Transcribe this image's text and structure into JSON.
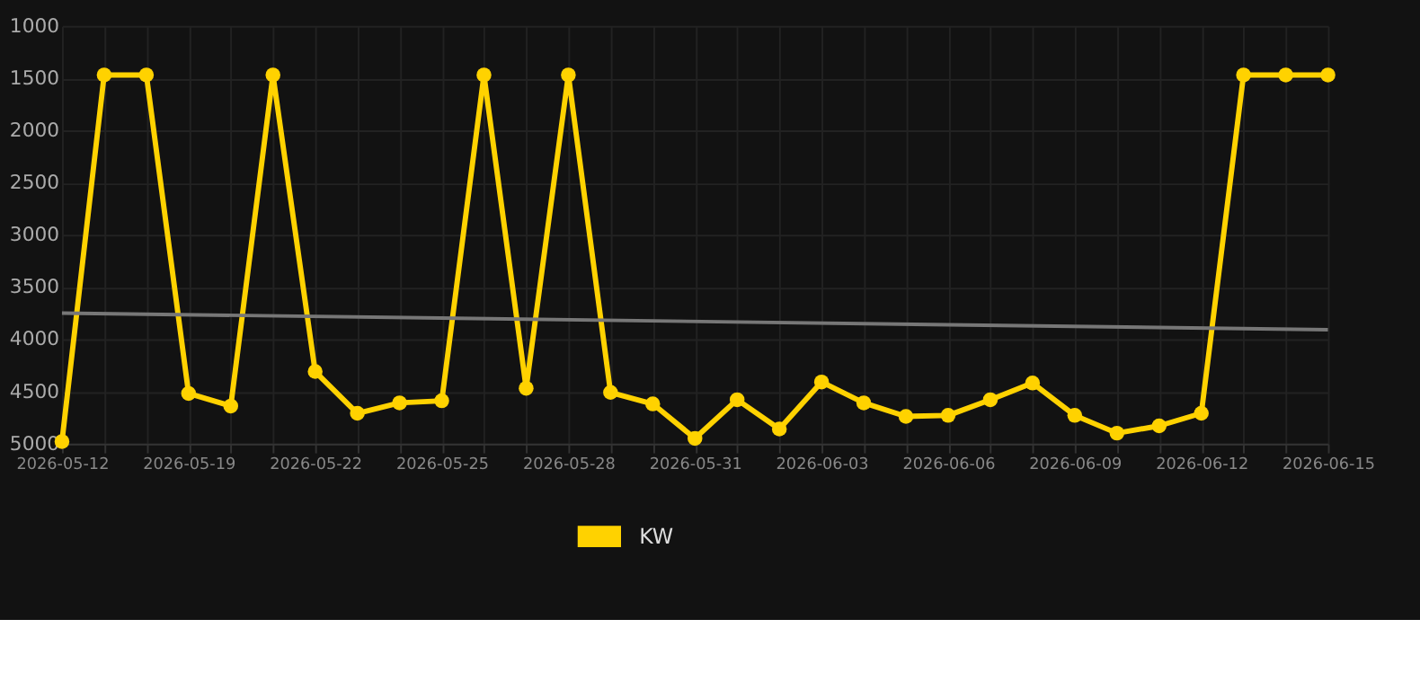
{
  "chart_data": {
    "type": "line",
    "categories": [
      "2026-05-12",
      null,
      null,
      "2026-05-19",
      null,
      null,
      "2026-05-22",
      null,
      null,
      "2026-05-25",
      null,
      null,
      "2026-05-28",
      null,
      null,
      "2026-05-31",
      null,
      null,
      "2026-06-03",
      null,
      null,
      "2026-06-06",
      null,
      null,
      "2026-06-09",
      null,
      null,
      "2026-06-12",
      null,
      null,
      "2026-06-15"
    ],
    "series": [
      {
        "name": "KW",
        "color": "#ffd200",
        "values": [
          4980,
          1470,
          1470,
          4520,
          4640,
          1470,
          4310,
          4710,
          4610,
          4590,
          1470,
          4470,
          1470,
          4510,
          4620,
          4950,
          4580,
          4860,
          4410,
          4610,
          4740,
          4730,
          4580,
          4420,
          4730,
          4900,
          4830,
          4710,
          1470,
          1470,
          1470
        ]
      },
      {
        "type": "line",
        "color": "#777777",
        "marker": "none",
        "values": [
          3750,
          null,
          null,
          null,
          null,
          null,
          null,
          null,
          null,
          null,
          null,
          null,
          null,
          null,
          null,
          null,
          null,
          null,
          null,
          null,
          null,
          null,
          null,
          null,
          null,
          null,
          null,
          null,
          null,
          null,
          3910
        ]
      }
    ],
    "ylim": [
      5000,
      1000
    ],
    "yticks": [
      1000,
      1500,
      2000,
      2500,
      3000,
      3500,
      4000,
      4500,
      5000
    ],
    "grid": true,
    "legend": "bottom",
    "marker": "circle",
    "line_style": "solid"
  }
}
